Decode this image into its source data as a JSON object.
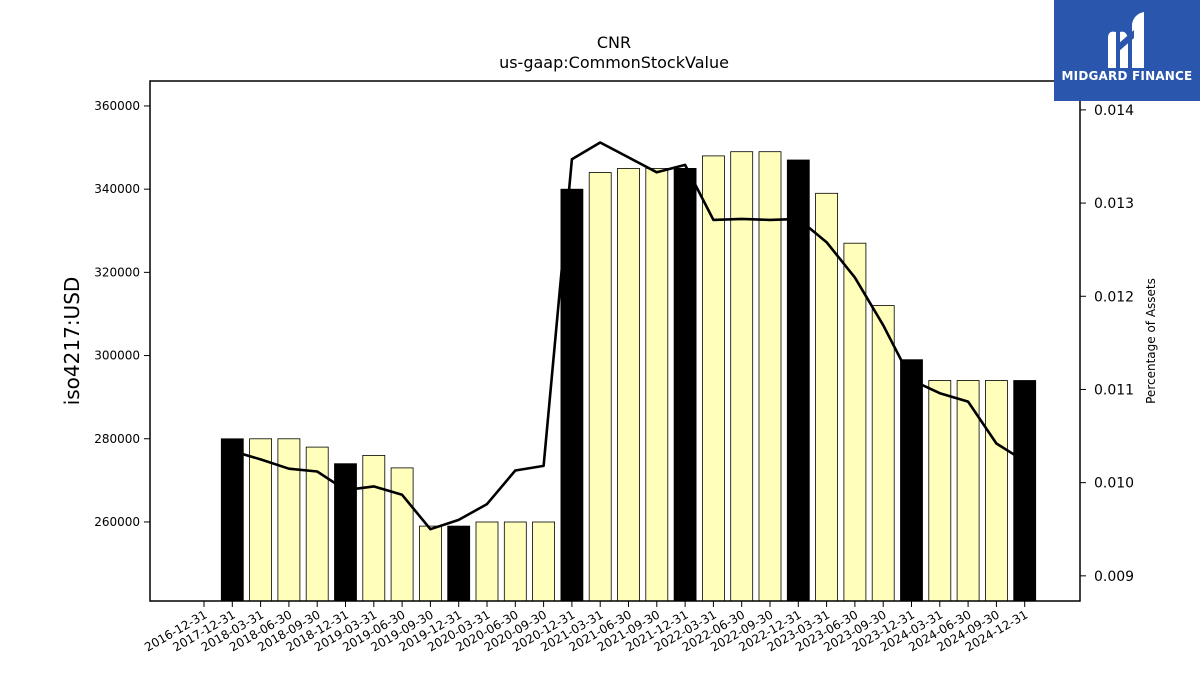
{
  "brand": {
    "name": "MIDGARD FINANCE",
    "logo_icon": "midgard-m-icon",
    "color": "#2a56ad"
  },
  "chart_data": {
    "type": "bar",
    "title": "CNR",
    "subtitle": "us-gaap:CommonStockValue",
    "ylabel": "iso4217:USD",
    "y2label": "Percentage of Assets",
    "categories": [
      "2016-12-31",
      "2017-12-31",
      "2018-03-31",
      "2018-06-30",
      "2018-09-30",
      "2018-12-31",
      "2019-03-31",
      "2019-06-30",
      "2019-09-30",
      "2019-12-31",
      "2020-03-31",
      "2020-06-30",
      "2020-09-30",
      "2020-12-31",
      "2021-03-31",
      "2021-06-30",
      "2021-09-30",
      "2021-12-31",
      "2022-03-31",
      "2022-06-30",
      "2022-09-30",
      "2022-12-31",
      "2023-03-31",
      "2023-06-30",
      "2023-09-30",
      "2023-12-31",
      "2024-03-31",
      "2024-06-30",
      "2024-09-30",
      "2024-12-31"
    ],
    "series": [
      {
        "values": [
          null,
          280000,
          280000,
          280000,
          278000,
          274000,
          276000,
          273000,
          259000,
          259000,
          260000,
          260000,
          260000,
          340000,
          344000,
          345000,
          345000,
          345000,
          348000,
          349000,
          349000,
          347000,
          339000,
          327000,
          312000,
          299000,
          294000,
          294000,
          294000,
          294000
        ],
        "annual": [
          false,
          true,
          false,
          false,
          false,
          true,
          false,
          false,
          false,
          true,
          false,
          false,
          false,
          true,
          false,
          false,
          false,
          true,
          false,
          false,
          false,
          true,
          false,
          false,
          false,
          true,
          false,
          false,
          false,
          true
        ]
      },
      {
        "axis": "right",
        "values": [
          null,
          0.01034,
          0.01025,
          0.01015,
          0.01012,
          0.00992,
          0.00996,
          0.00987,
          0.0095,
          0.0096,
          0.00977,
          0.01013,
          0.01018,
          0.01347,
          0.01365,
          0.01349,
          0.01333,
          0.01341,
          0.01282,
          0.01283,
          0.01282,
          0.01283,
          0.01258,
          0.0122,
          0.01169,
          0.0111,
          0.01096,
          0.01087,
          0.01042,
          0.01023
        ]
      }
    ],
    "ylim": [
      241000,
      366000
    ],
    "yticks": [
      260000,
      280000,
      300000,
      320000,
      340000,
      360000
    ],
    "y2lim": [
      0.00873,
      0.01431
    ],
    "y2ticks": [
      "0.009",
      "0.010",
      "0.011",
      "0.012",
      "0.013",
      "0.014"
    ],
    "colors": {
      "annual_bar": "#000000",
      "quarter_bar": "#ffffbb",
      "line": "#000000"
    },
    "grid": false,
    "legend": "none"
  }
}
